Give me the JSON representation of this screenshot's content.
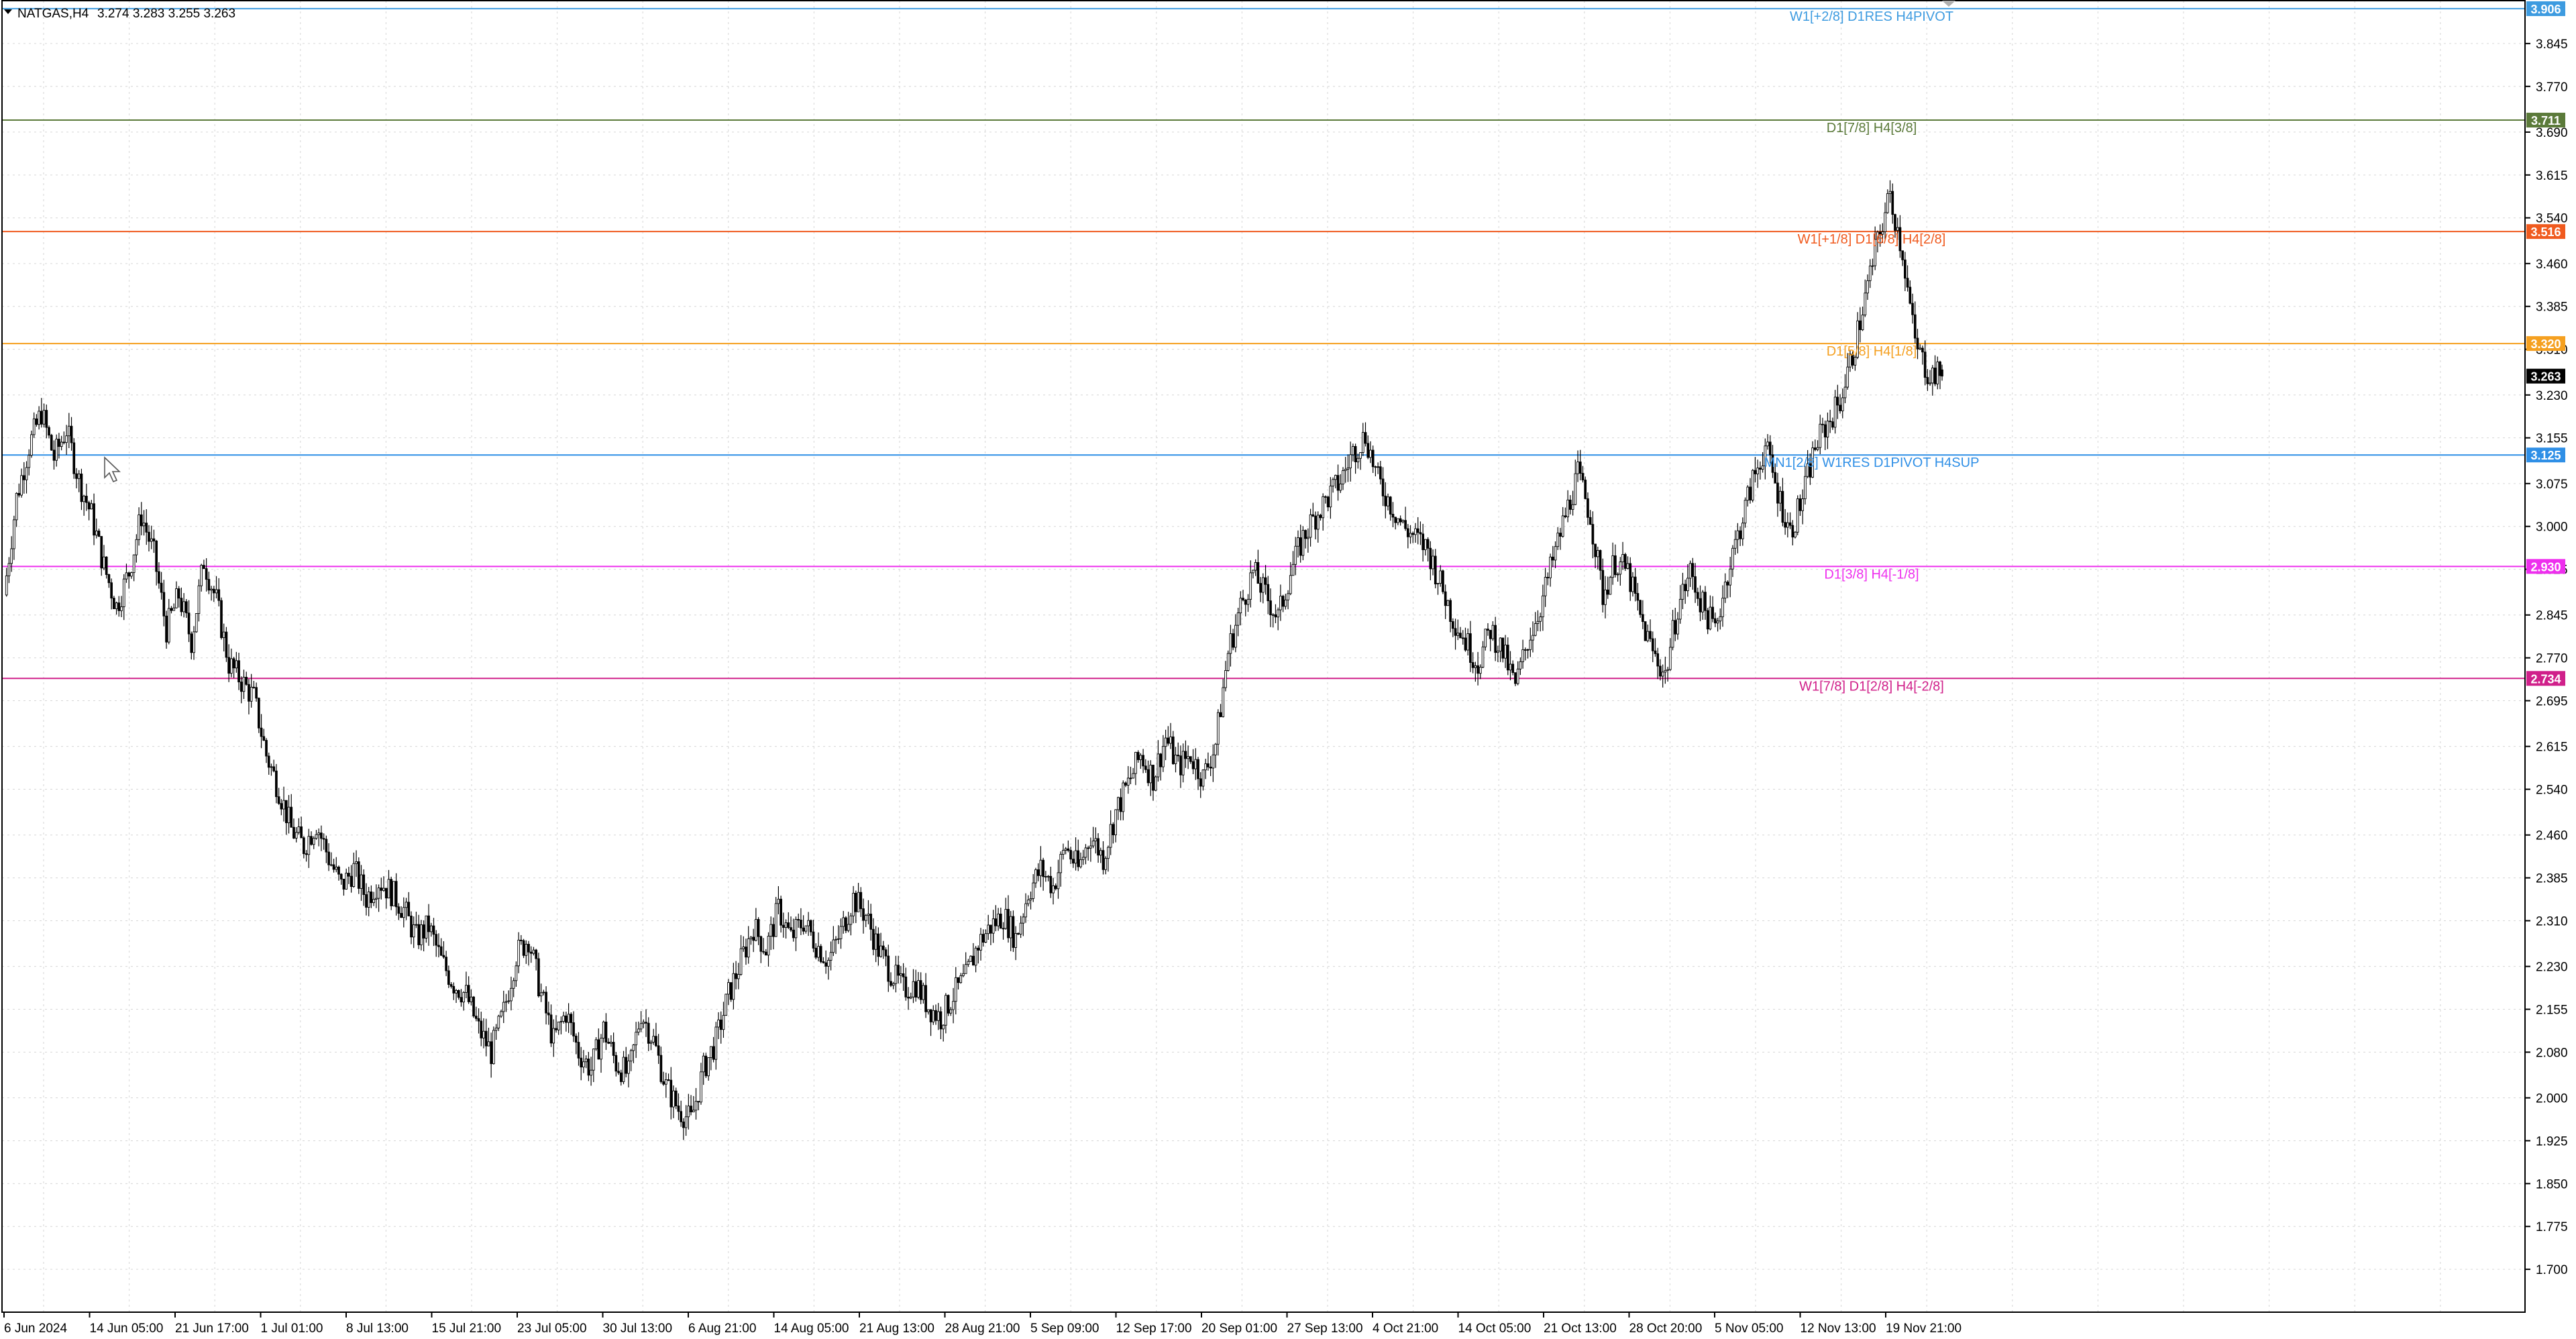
{
  "header": {
    "symbol": "NATGAS,H4",
    "ohlc": "3.274 3.283 3.255 3.263"
  },
  "chart_data": {
    "type": "candlestick",
    "symbol": "NATGAS",
    "timeframe": "H4",
    "current_price": 3.263,
    "current_price_label": "3.263",
    "ylim": [
      1.625,
      3.92
    ],
    "grid": true,
    "y_ticks": [
      "3.845",
      "3.770",
      "3.690",
      "3.615",
      "3.540",
      "3.460",
      "3.385",
      "3.310",
      "3.230",
      "3.155",
      "3.075",
      "3.000",
      "2.925",
      "2.845",
      "2.770",
      "2.695",
      "2.615",
      "2.540",
      "2.460",
      "2.385",
      "2.310",
      "2.230",
      "2.155",
      "2.080",
      "2.000",
      "1.925",
      "1.850",
      "1.775",
      "1.700"
    ],
    "x_ticks": [
      "6 Jun 2024",
      "14 Jun 05:00",
      "21 Jun 17:00",
      "1 Jul 01:00",
      "8 Jul 13:00",
      "15 Jul 21:00",
      "23 Jul 05:00",
      "30 Jul 13:00",
      "6 Aug 21:00",
      "14 Aug 05:00",
      "21 Aug 13:00",
      "28 Aug 21:00",
      "5 Sep 09:00",
      "12 Sep 17:00",
      "20 Sep 01:00",
      "27 Sep 13:00",
      "4 Oct 21:00",
      "14 Oct 05:00",
      "21 Oct 13:00",
      "28 Oct 20:00",
      "5 Nov 05:00",
      "12 Nov 13:00",
      "19 Nov 21:00"
    ],
    "levels": [
      {
        "price": 3.906,
        "price_label": "3.906",
        "label": "W1[+2/8] D1RES H4PIVOT",
        "color": "#3d9be0"
      },
      {
        "price": 3.711,
        "price_label": "3.711",
        "label": "D1[7/8] H4[3/8]",
        "color": "#5b7a3a"
      },
      {
        "price": 3.516,
        "price_label": "3.516",
        "label": "W1[+1/8] D1[6/8] H4[2/8]",
        "color": "#f05a1e"
      },
      {
        "price": 3.32,
        "price_label": "3.320",
        "label": "D1[5/8] H4[1/8]",
        "color": "#f5a020"
      },
      {
        "price": 3.125,
        "price_label": "3.125",
        "label": "MN1[2/8] W1RES D1PIVOT H4SUP",
        "color": "#2f8fe6"
      },
      {
        "price": 2.93,
        "price_label": "2.930",
        "label": "D1[3/8] H4[-1/8]",
        "color": "#ee2fee"
      },
      {
        "price": 2.734,
        "price_label": "2.734",
        "label": "W1[7/8] D1[2/8] H4[-2/8]",
        "color": "#d0208a"
      }
    ],
    "price_path": [
      [
        "6 Jun 2024",
        2.88
      ],
      [
        "",
        3.05
      ],
      [
        "",
        3.14
      ],
      [
        "",
        3.2
      ],
      [
        "",
        3.12
      ],
      [
        "",
        3.17
      ],
      [
        "",
        3.08
      ],
      [
        "",
        3.02
      ],
      [
        "",
        2.93
      ],
      [
        "14 Jun 05:00",
        2.86
      ],
      [
        "",
        2.92
      ],
      [
        "",
        3.02
      ],
      [
        "",
        2.95
      ],
      [
        "",
        2.82
      ],
      [
        "",
        2.88
      ],
      [
        "",
        2.8
      ],
      [
        "",
        2.94
      ],
      [
        "21 Jun 17:00",
        2.87
      ],
      [
        "",
        2.76
      ],
      [
        "",
        2.73
      ],
      [
        "",
        2.7
      ],
      [
        "",
        2.6
      ],
      [
        "",
        2.54
      ],
      [
        "",
        2.47
      ],
      [
        "1 Jul 01:00",
        2.44
      ],
      [
        "",
        2.48
      ],
      [
        "",
        2.42
      ],
      [
        "",
        2.37
      ],
      [
        "",
        2.4
      ],
      [
        "",
        2.35
      ],
      [
        "",
        2.38
      ],
      [
        "8 Jul 13:00",
        2.36
      ],
      [
        "",
        2.33
      ],
      [
        "",
        2.28
      ],
      [
        "",
        2.3
      ],
      [
        "",
        2.24
      ],
      [
        "",
        2.2
      ],
      [
        "",
        2.18
      ],
      [
        "15 Jul 21:00",
        2.12
      ],
      [
        "",
        2.08
      ],
      [
        "",
        2.15
      ],
      [
        "",
        2.25
      ],
      [
        "",
        2.28
      ],
      [
        "",
        2.18
      ],
      [
        "",
        2.1
      ],
      [
        "23 Jul 05:00",
        2.15
      ],
      [
        "",
        2.08
      ],
      [
        "",
        2.05
      ],
      [
        "",
        2.12
      ],
      [
        "",
        2.06
      ],
      [
        "",
        2.04
      ],
      [
        "",
        2.15
      ],
      [
        "30 Jul 13:00",
        2.1
      ],
      [
        "",
        2.02
      ],
      [
        "",
        1.98
      ],
      [
        "",
        1.96
      ],
      [
        "",
        2.05
      ],
      [
        "",
        2.1
      ],
      [
        "",
        2.18
      ],
      [
        "6 Aug 21:00",
        2.24
      ],
      [
        "",
        2.3
      ],
      [
        "",
        2.26
      ],
      [
        "",
        2.33
      ],
      [
        "",
        2.28
      ],
      [
        "",
        2.31
      ],
      [
        "",
        2.27
      ],
      [
        "14 Aug 05:00",
        2.24
      ],
      [
        "",
        2.29
      ],
      [
        "",
        2.35
      ],
      [
        "",
        2.32
      ],
      [
        "",
        2.26
      ],
      [
        "",
        2.22
      ],
      [
        "",
        2.19
      ],
      [
        "21 Aug 13:00",
        2.2
      ],
      [
        "",
        2.16
      ],
      [
        "",
        2.14
      ],
      [
        "",
        2.18
      ],
      [
        "",
        2.21
      ],
      [
        "",
        2.27
      ],
      [
        "",
        2.3
      ],
      [
        "28 Aug 21:00",
        2.32
      ],
      [
        "",
        2.28
      ],
      [
        "",
        2.36
      ],
      [
        "",
        2.4
      ],
      [
        "",
        2.37
      ],
      [
        "",
        2.44
      ],
      [
        "5 Sep 09:00",
        2.4
      ],
      [
        "",
        2.46
      ],
      [
        "",
        2.42
      ],
      [
        "",
        2.5
      ],
      [
        "",
        2.55
      ],
      [
        "",
        2.6
      ],
      [
        "12 Sep 17:00",
        2.56
      ],
      [
        "",
        2.63
      ],
      [
        "",
        2.58
      ],
      [
        "",
        2.6
      ],
      [
        "",
        2.56
      ],
      [
        "",
        2.62
      ],
      [
        "",
        2.78
      ],
      [
        "20 Sep 01:00",
        2.86
      ],
      [
        "",
        2.92
      ],
      [
        "",
        2.88
      ],
      [
        "",
        2.84
      ],
      [
        "",
        2.92
      ],
      [
        "",
        2.98
      ],
      [
        "",
        3.02
      ],
      [
        "27 Sep 13:00",
        3.05
      ],
      [
        "",
        3.08
      ],
      [
        "",
        3.13
      ],
      [
        "",
        3.16
      ],
      [
        "",
        3.08
      ],
      [
        "",
        3.04
      ],
      [
        "4 Oct 21:00",
        3.0
      ],
      [
        "",
        2.98
      ],
      [
        "",
        2.96
      ],
      [
        "",
        2.9
      ],
      [
        "",
        2.84
      ],
      [
        "",
        2.8
      ],
      [
        "14 Oct 05:00",
        2.76
      ],
      [
        "",
        2.82
      ],
      [
        "",
        2.78
      ],
      [
        "",
        2.72
      ],
      [
        "",
        2.8
      ],
      [
        "",
        2.86
      ],
      [
        "21 Oct 13:00",
        2.94
      ],
      [
        "",
        3.02
      ],
      [
        "",
        3.09
      ],
      [
        "",
        3.02
      ],
      [
        "",
        2.88
      ],
      [
        "",
        2.94
      ],
      [
        "28 Oct 20:00",
        2.92
      ],
      [
        "",
        2.84
      ],
      [
        "",
        2.78
      ],
      [
        "",
        2.74
      ],
      [
        "",
        2.86
      ],
      [
        "",
        2.92
      ],
      [
        "",
        2.86
      ],
      [
        "5 Nov 05:00",
        2.82
      ],
      [
        "",
        2.92
      ],
      [
        "",
        3.0
      ],
      [
        "",
        3.08
      ],
      [
        "",
        3.14
      ],
      [
        "",
        3.06
      ],
      [
        "",
        2.99
      ],
      [
        "12 Nov 13:00",
        3.05
      ],
      [
        "",
        3.14
      ],
      [
        "",
        3.18
      ],
      [
        "",
        3.22
      ],
      [
        "",
        3.3
      ],
      [
        "",
        3.4
      ],
      [
        "",
        3.5
      ],
      [
        "",
        3.58
      ],
      [
        "19 Nov 21:00",
        3.48
      ],
      [
        "",
        3.32
      ],
      [
        "",
        3.27
      ],
      [
        "",
        3.263
      ]
    ]
  }
}
